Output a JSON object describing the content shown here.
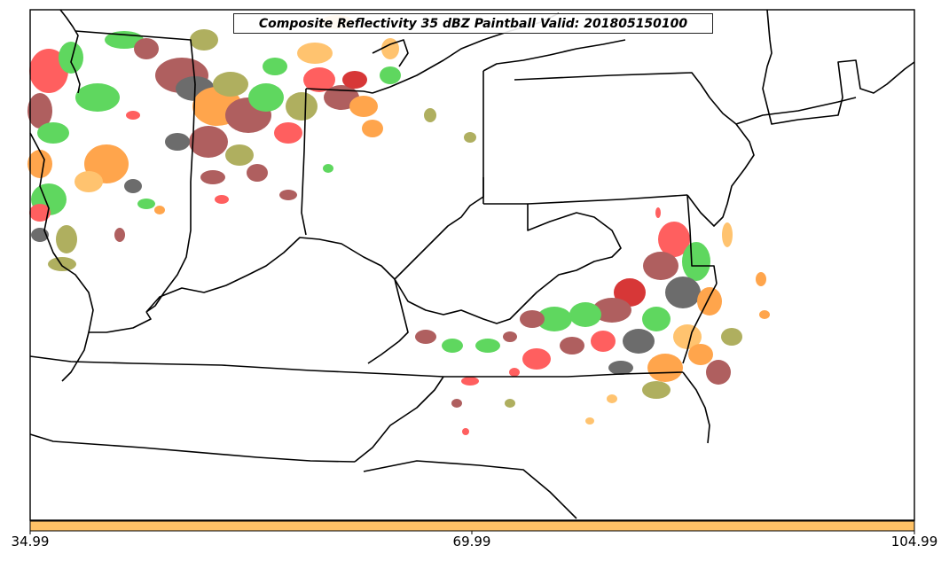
{
  "title": "Composite Reflectivity 35 dBZ Paintball Valid: 201805150100",
  "colorbar": {
    "fill_color": "#ffc266",
    "tick_labels": [
      "34.99",
      "69.99",
      "104.99"
    ]
  },
  "colors": {
    "background": "#ffffff",
    "boundaries": "#000000",
    "paintball_members": [
      "#ff3333",
      "#33cc33",
      "#ff8c1a",
      "#993333",
      "#444444",
      "#999933",
      "#cc0000",
      "#ffb347"
    ]
  }
}
